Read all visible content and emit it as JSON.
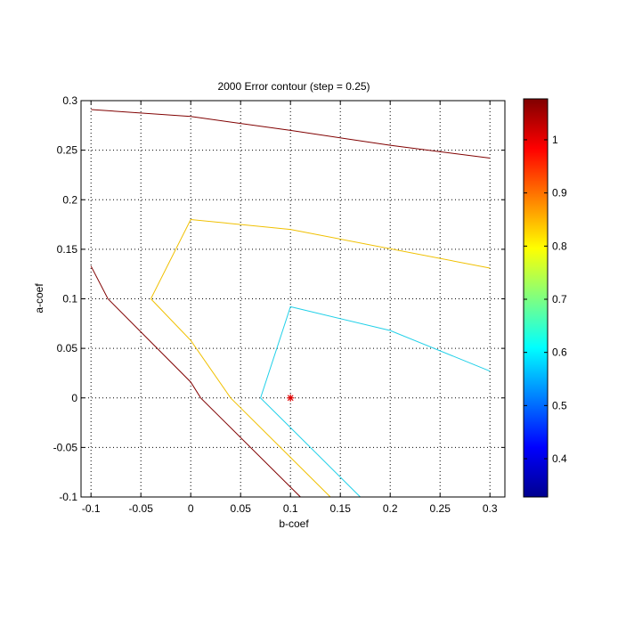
{
  "chart_data": {
    "type": "line",
    "subtype": "contour",
    "title": "2000 Error contour (step = 0.25)",
    "xlabel": "b-coef",
    "ylabel": "a-coef",
    "xlim": [
      -0.11,
      0.315
    ],
    "ylim": [
      -0.1,
      0.3
    ],
    "xticks": [
      -0.1,
      -0.05,
      0,
      0.05,
      0.1,
      0.15,
      0.2,
      0.25,
      0.3
    ],
    "xtick_labels": [
      "-0.1",
      "-0.05",
      "0",
      "0.05",
      "0.1",
      "0.15",
      "0.2",
      "0.25",
      "0.3"
    ],
    "yticks": [
      -0.1,
      -0.05,
      0,
      0.05,
      0.1,
      0.15,
      0.2,
      0.25,
      0.3
    ],
    "ytick_labels": [
      "-0.1",
      "-0.05",
      "0",
      "0.05",
      "0.1",
      "0.15",
      "0.2",
      "0.25",
      "0.3"
    ],
    "grid": true,
    "grid_style": "dotted",
    "series": [
      {
        "level": 1.05,
        "color": "#800000",
        "x": [
          -0.1,
          0,
          0.1,
          0.2,
          0.3
        ],
        "y": [
          0.291,
          0.284,
          0.27,
          0.255,
          0.242
        ]
      },
      {
        "level": 1.05,
        "color": "#800000",
        "x": [
          -0.1,
          -0.083,
          0,
          0.01,
          0.11
        ],
        "y": [
          0.133,
          0.1,
          0.016,
          0,
          -0.1
        ]
      },
      {
        "level": 0.8,
        "color": "#f0c000",
        "x": [
          0.3,
          0.1,
          0,
          -0.04,
          0,
          0.04,
          0.1,
          0.14
        ],
        "y": [
          0.131,
          0.17,
          0.18,
          0.1,
          0.058,
          0,
          -0.06,
          -0.1
        ]
      },
      {
        "level": 0.6,
        "color": "#20d0e8",
        "x": [
          0.3,
          0.2,
          0.1,
          0.07,
          0.1,
          0.17
        ],
        "y": [
          0.027,
          0.068,
          0.092,
          0,
          -0.03,
          -0.1
        ]
      }
    ],
    "marker": {
      "x": 0.1,
      "y": 0,
      "symbol": "star",
      "color": "#e00000"
    },
    "colorbar": {
      "colormap": "jet",
      "range": [
        0.328,
        1.077
      ],
      "ticks": [
        0.4,
        0.5,
        0.6,
        0.7,
        0.8,
        0.9,
        1
      ],
      "tick_labels": [
        "0.4",
        "0.5",
        "0.6",
        "0.7",
        "0.8",
        "0.9",
        "1"
      ],
      "position": "right"
    }
  }
}
